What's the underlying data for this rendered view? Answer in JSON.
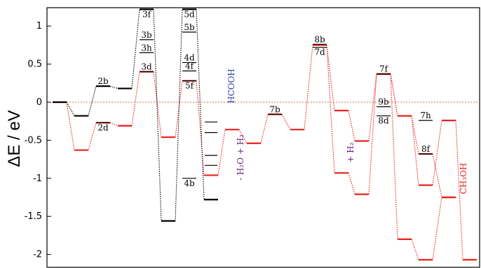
{
  "chart_data": {
    "type": "line",
    "title": "",
    "xlabel": "",
    "ylabel": "ΔE / eV",
    "ylim": [
      -2.2,
      1.22
    ],
    "yticks": [
      "1",
      "0.5",
      "0",
      "-0.5",
      "-1",
      "-1.5",
      "-2"
    ],
    "ytick_values": [
      1,
      0.5,
      0,
      -0.5,
      -1,
      -1.5,
      -2
    ],
    "grid": false,
    "zero_line": true,
    "colors": {
      "red": "#e8211b",
      "black": "#000000",
      "blue": "#2a3fa0",
      "purple": "#6a1e78"
    },
    "series": [
      {
        "color": "#e8211b",
        "points": [
          [
            0,
            0
          ],
          [
            1,
            -0.63
          ],
          [
            2,
            -0.27
          ],
          [
            3,
            -0.31
          ],
          [
            4,
            0.4
          ],
          [
            5,
            -0.46
          ],
          [
            6,
            0.28
          ],
          [
            7,
            -0.96
          ],
          [
            8,
            -0.36
          ],
          [
            9,
            -0.54
          ],
          [
            10,
            -0.16
          ],
          [
            11,
            -0.36
          ],
          [
            12,
            0.75
          ],
          [
            13,
            -0.11
          ],
          [
            14,
            -0.51
          ],
          [
            15,
            0.37
          ],
          [
            16,
            -0.18
          ],
          [
            17,
            -0.68
          ],
          [
            18,
            -1.25
          ]
        ]
      },
      {
        "color": "#e8211b",
        "points": [
          [
            12,
            0.75
          ],
          [
            13,
            -0.93
          ],
          [
            14,
            -1.21
          ],
          [
            15,
            0.37
          ],
          [
            16,
            -1.8
          ],
          [
            17,
            -2.07
          ],
          [
            18,
            -1.25
          ]
        ]
      },
      {
        "color": "#e8211b",
        "points": [
          [
            15,
            0.37
          ],
          [
            16,
            -0.18
          ],
          [
            17,
            -1.09
          ],
          [
            18,
            -0.24
          ],
          [
            19,
            -2.07
          ]
        ]
      },
      {
        "color": "#000000",
        "points": [
          [
            0,
            0
          ],
          [
            1,
            -0.18
          ],
          [
            2,
            0.21
          ],
          [
            3,
            0.18
          ],
          [
            4,
            1.22
          ],
          [
            5,
            -1.56
          ],
          [
            6,
            1.22
          ],
          [
            7,
            -1.28
          ]
        ]
      }
    ],
    "state_labels": [
      "2b",
      "2d",
      "3f",
      "3b",
      "3h",
      "3d",
      "5d",
      "5b",
      "4d",
      "4f",
      "5f",
      "4b",
      "7b",
      "8b",
      "7d",
      "7f",
      "9b",
      "8d",
      "7h",
      "8f"
    ],
    "state_values": {
      "2b": 0.21,
      "2d": -0.27,
      "3f": 1.22,
      "3b": 0.82,
      "3h": 0.65,
      "3d": 0.4,
      "5d": 1.22,
      "5b": 0.92,
      "4d": 0.52,
      "4f": 0.41,
      "5f": 0.28,
      "4b": -1.0,
      "7b": -0.16,
      "8b": 0.76,
      "7d": 0.72,
      "7f": 0.37,
      "9b": -0.06,
      "8d": -0.18,
      "7h": -0.24,
      "8f": -0.68
    },
    "extra_levels": [
      -0.26,
      -0.4,
      -0.7,
      -0.83
    ],
    "annotations": [
      {
        "id": "hcooh",
        "text": "HCOOH",
        "color": "#2a3fa0"
      },
      {
        "id": "h2o",
        "text": "- H₂O + H₂",
        "color": "#6a1e78"
      },
      {
        "id": "h2",
        "text": "+ H₂",
        "color": "#6a1e78"
      },
      {
        "id": "ch3oh",
        "text": "CH₃OH",
        "color": "#e8211b"
      }
    ]
  }
}
